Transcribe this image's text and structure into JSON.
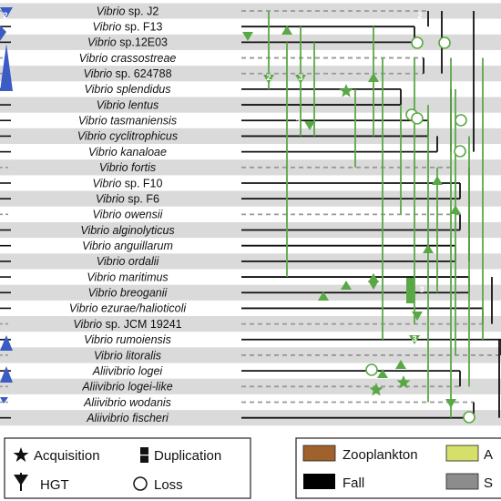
{
  "taxa": [
    {
      "label": "Vibrio sp. J2",
      "italic_part": "Vibrio",
      "plain_part": " sp. J2"
    },
    {
      "label": "Vibrio sp. F13",
      "italic_part": "Vibrio",
      "plain_part": " sp. F13"
    },
    {
      "label": "Vibrio sp.12E03",
      "italic_part": "Vibrio",
      "plain_part": " sp.12E03"
    },
    {
      "label": "Vibrio crassostreae",
      "italic_part": "Vibrio crassostreae",
      "plain_part": ""
    },
    {
      "label": "Vibrio sp. 624788",
      "italic_part": "Vibrio",
      "plain_part": " sp. 624788"
    },
    {
      "label": "Vibrio splendidus",
      "italic_part": "Vibrio splendidus",
      "plain_part": ""
    },
    {
      "label": "Vibrio lentus",
      "italic_part": "Vibrio lentus",
      "plain_part": ""
    },
    {
      "label": "Vibrio tasmaniensis",
      "italic_part": "Vibrio tasmaniensis",
      "plain_part": ""
    },
    {
      "label": "Vibrio cyclitrophicus",
      "italic_part": "Vibrio cyclitrophicus",
      "plain_part": ""
    },
    {
      "label": "Vibrio kanaloae",
      "italic_part": "Vibrio kanaloae",
      "plain_part": ""
    },
    {
      "label": "Vibrio fortis",
      "italic_part": "Vibrio fortis",
      "plain_part": ""
    },
    {
      "label": "Vibrio sp. F10",
      "italic_part": "Vibrio",
      "plain_part": " sp. F10"
    },
    {
      "label": "Vibrio sp. F6",
      "italic_part": "Vibrio",
      "plain_part": " sp. F6"
    },
    {
      "label": "Vibrio owensii",
      "italic_part": "Vibrio owensii",
      "plain_part": ""
    },
    {
      "label": "Vibrio alginolyticus",
      "italic_part": "Vibrio alginolyticus",
      "plain_part": ""
    },
    {
      "label": "Vibrio anguillarum",
      "italic_part": "Vibrio anguillarum",
      "plain_part": ""
    },
    {
      "label": "Vibrio ordalii",
      "italic_part": "Vibrio ordalii",
      "plain_part": ""
    },
    {
      "label": "Vibrio maritimus",
      "italic_part": "Vibrio maritimus",
      "plain_part": ""
    },
    {
      "label": "Vibrio breoganii",
      "italic_part": "Vibrio breoganii",
      "plain_part": ""
    },
    {
      "label": "Vibrio ezurae/halioticoli",
      "italic_part": "Vibrio ezurae/halioticoli",
      "plain_part": ""
    },
    {
      "label": "Vibrio sp. JCM 19241",
      "italic_part": "Vibrio",
      "plain_part": " sp. JCM 19241"
    },
    {
      "label": "Vibrio rumoiensis",
      "italic_part": "Vibrio rumoiensis",
      "plain_part": ""
    },
    {
      "label": "Vibrio litoralis",
      "italic_part": "Vibrio litoralis",
      "plain_part": ""
    },
    {
      "label": "Aliivibrio logei",
      "italic_part": "Aliivibrio logei",
      "plain_part": ""
    },
    {
      "label": "Aliivibrio logei-like",
      "italic_part": "Aliivibrio logei-like",
      "plain_part": ""
    },
    {
      "label": "Aliivibrio wodanis",
      "italic_part": "Aliivibrio wodanis",
      "plain_part": ""
    },
    {
      "label": "Aliivibrio fischeri",
      "italic_part": "Aliivibrio fischeri",
      "plain_part": ""
    }
  ],
  "branch_style": {
    "solid_rows": [
      1,
      2,
      5,
      6,
      7,
      8,
      9,
      11,
      12,
      14,
      15,
      16,
      17,
      18,
      19,
      21,
      23,
      26
    ],
    "dashed_rows": [
      0,
      3,
      4,
      10,
      13,
      20,
      22,
      24,
      25
    ]
  },
  "event_numbers": {
    "hgt_label_a": "2",
    "hgt_label_b": "3",
    "hgt_label_c": "3",
    "hgt_label_d": "2",
    "hgt_label_e": "3",
    "dup_label": "3",
    "left_hgt_label": "2"
  },
  "legend_events": {
    "acquisition": "Acquisition",
    "duplication": "Duplication",
    "hgt": "HGT",
    "loss": "Loss"
  },
  "legend_habitat": {
    "zooplankton": "Zooplankton",
    "fall": "Fall",
    "a_label": "A",
    "s_label": "S"
  },
  "colors": {
    "event_green": "#5aa845",
    "marker_blue": "#3b5cc4",
    "stripe_gray": "#dadada",
    "zooplankton": "#a0622d",
    "fall": "#000000",
    "a_swatch": "#d4e06a",
    "s_swatch": "#8c8c8c"
  }
}
